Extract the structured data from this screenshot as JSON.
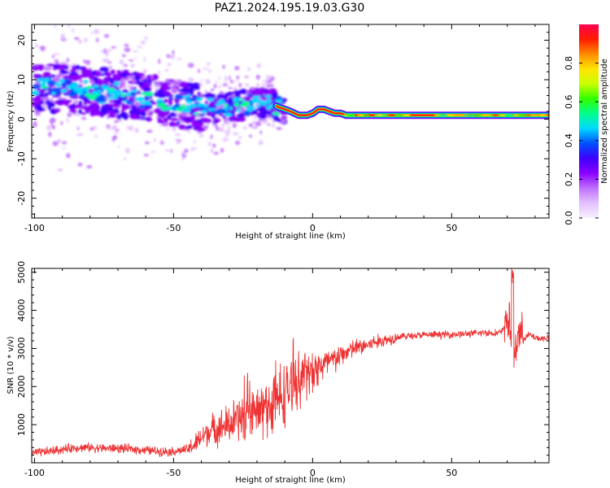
{
  "figure": {
    "title": "PAZ1.2024.195.19.03.G30"
  },
  "colors": {
    "snr_line": "#ee3333",
    "colormap": [
      "#f8f0ff",
      "#e3c0ff",
      "#c070ff",
      "#8a00ff",
      "#3f00ff",
      "#0050ff",
      "#00d8ff",
      "#00ff90",
      "#30ff00",
      "#c8ff00",
      "#ffe400",
      "#ff8c00",
      "#ff1d00",
      "#ff0050"
    ]
  },
  "chart_data": [
    {
      "type": "heatmap",
      "title": "",
      "xlabel": "Height of straight line (km)",
      "ylabel": "Frequency (Hz)",
      "xlim": [
        -101,
        85
      ],
      "ylim": [
        -25,
        24
      ],
      "xticks": [
        -100,
        -50,
        0,
        50
      ],
      "yticks": [
        -20,
        -10,
        0,
        10,
        20
      ],
      "colorbar": {
        "label": "Normalized spectral amplitude",
        "range": [
          0,
          1
        ],
        "ticks": [
          0.0,
          0.2,
          0.4,
          0.6,
          0.8
        ],
        "tick_labels": [
          "0.0",
          "0.2",
          "0.4",
          "0.6",
          "0.8"
        ]
      },
      "dominant_frequency_ridge": {
        "x": [
          -100,
          -95,
          -90,
          -85,
          -80,
          -75,
          -70,
          -65,
          -60,
          -55,
          -50,
          -45,
          -40,
          -35,
          -30,
          -25,
          -20,
          -15,
          -12,
          -10,
          -8,
          -5,
          -2,
          0,
          2,
          4,
          6,
          8,
          10,
          12,
          15,
          20,
          30,
          40,
          50,
          60,
          70,
          80,
          85
        ],
        "y": [
          9,
          8,
          8,
          7.5,
          7,
          7,
          6.5,
          6,
          5.5,
          5,
          4,
          3.5,
          3,
          3,
          3,
          3.5,
          4,
          4,
          3,
          2.5,
          2,
          1,
          1,
          1.5,
          2.5,
          2.5,
          2,
          1.5,
          1.5,
          1,
          1,
          1,
          1,
          1,
          1,
          1,
          1,
          1,
          1
        ]
      }
    },
    {
      "type": "line",
      "title": "",
      "xlabel": "Height of straight line (km)",
      "ylabel": "SNR (10 * v/v)",
      "xlim": [
        -101,
        85
      ],
      "ylim": [
        0,
        5100
      ],
      "xticks": [
        -100,
        -50,
        0,
        50
      ],
      "yticks": [
        1000,
        2000,
        3000,
        4000,
        5000
      ],
      "series": [
        {
          "x": [
            -100,
            -95,
            -90,
            -85,
            -80,
            -75,
            -70,
            -65,
            -60,
            -55,
            -50,
            -45,
            -42,
            -40,
            -38,
            -35,
            -32,
            -30,
            -28,
            -25,
            -22,
            -20,
            -18,
            -15,
            -12,
            -10,
            -8,
            -5,
            -2,
            0,
            2,
            5,
            8,
            10,
            12,
            15,
            18,
            20,
            22,
            25,
            28,
            30,
            35,
            40,
            45,
            50,
            55,
            60,
            62,
            65,
            68,
            70,
            71,
            72,
            73,
            74,
            76,
            78,
            80,
            82,
            85
          ],
          "y": [
            250,
            300,
            350,
            400,
            400,
            380,
            380,
            360,
            330,
            300,
            300,
            350,
            500,
            650,
            800,
            900,
            950,
            1000,
            1100,
            1200,
            1250,
            1300,
            1400,
            1500,
            1650,
            1800,
            2000,
            2200,
            2300,
            2400,
            2500,
            2600,
            2700,
            2800,
            2900,
            3000,
            3050,
            3100,
            3150,
            3200,
            3250,
            3300,
            3330,
            3350,
            3360,
            3370,
            3380,
            3400,
            3420,
            3400,
            3420,
            3800,
            3600,
            2400,
            3000,
            3500,
            3300,
            3350,
            3300,
            3250,
            3300
          ]
        }
      ]
    }
  ]
}
